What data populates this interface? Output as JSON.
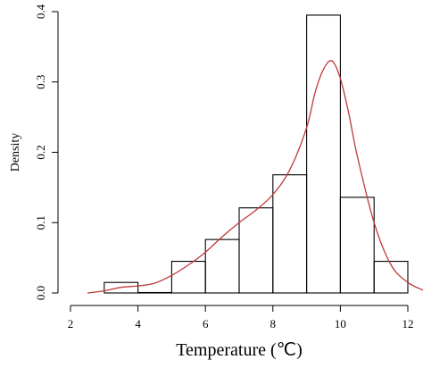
{
  "chart_data": {
    "type": "histogram",
    "title": "",
    "xlabel": "Temperature (℃)",
    "ylabel": "Density",
    "xlim": [
      2,
      12
    ],
    "ylim": [
      0,
      0.4
    ],
    "x_ticks": [
      "2",
      "4",
      "6",
      "8",
      "10",
      "12"
    ],
    "y_ticks": [
      "0.0",
      "0.1",
      "0.2",
      "0.3",
      "0.4"
    ],
    "bins": [
      {
        "x0": 3,
        "x1": 4,
        "density": 0.015
      },
      {
        "x0": 4,
        "x1": 5,
        "density": 0.0
      },
      {
        "x0": 5,
        "x1": 6,
        "density": 0.045
      },
      {
        "x0": 6,
        "x1": 7,
        "density": 0.076
      },
      {
        "x0": 7,
        "x1": 8,
        "density": 0.121
      },
      {
        "x0": 8,
        "x1": 9,
        "density": 0.168
      },
      {
        "x0": 9,
        "x1": 10,
        "density": 0.395
      },
      {
        "x0": 10,
        "x1": 11,
        "density": 0.136
      },
      {
        "x0": 11,
        "x1": 12,
        "density": 0.045
      }
    ],
    "density_curve": {
      "x": [
        2.5,
        3.0,
        3.5,
        4.0,
        4.5,
        5.0,
        5.5,
        6.0,
        6.5,
        7.0,
        7.5,
        8.0,
        8.5,
        9.0,
        9.25,
        9.5,
        9.75,
        10.0,
        10.25,
        10.5,
        11.0,
        11.5,
        12.0,
        12.5
      ],
      "y": [
        0.0,
        0.003,
        0.008,
        0.01,
        0.014,
        0.025,
        0.04,
        0.058,
        0.08,
        0.1,
        0.118,
        0.14,
        0.175,
        0.235,
        0.285,
        0.318,
        0.33,
        0.305,
        0.255,
        0.195,
        0.1,
        0.04,
        0.015,
        0.003
      ]
    },
    "colors": {
      "bars": "#000000",
      "curve": "#c0393b"
    }
  }
}
